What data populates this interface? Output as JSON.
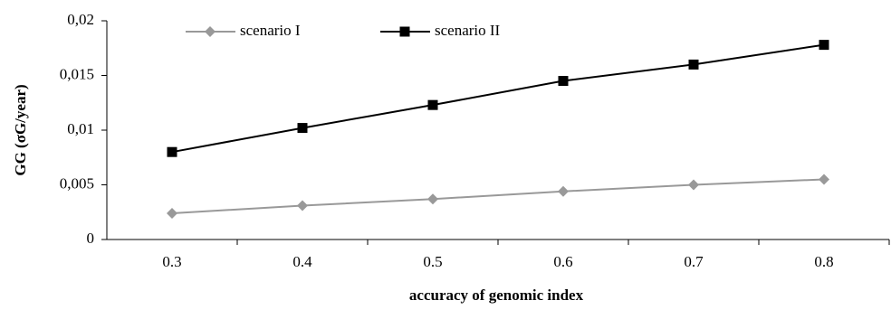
{
  "chart_data": {
    "type": "line",
    "ylabel": "GG (σG/year)",
    "xlabel": "accuracy of genomic index",
    "categories": [
      "0.3",
      "0.4",
      "0.5",
      "0.6",
      "0.7",
      "0.8"
    ],
    "series": [
      {
        "name": "scenario I",
        "color": "#999999",
        "marker": "diamond",
        "values": [
          0.0024,
          0.0031,
          0.0037,
          0.0044,
          0.005,
          0.0055
        ]
      },
      {
        "name": "scenario II",
        "color": "#000000",
        "marker": "square",
        "values": [
          0.008,
          0.0102,
          0.0123,
          0.0145,
          0.016,
          0.0178
        ]
      }
    ],
    "ylim": [
      0,
      0.02
    ],
    "yticks": [
      0,
      {
        "value": 0.005,
        "label": "0,005"
      },
      {
        "value": 0.01,
        "label": "0,01"
      },
      {
        "value": 0.015,
        "label": "0,015"
      },
      {
        "value": 0.02,
        "label": "0,02"
      }
    ],
    "grid": false,
    "legend": "top"
  }
}
